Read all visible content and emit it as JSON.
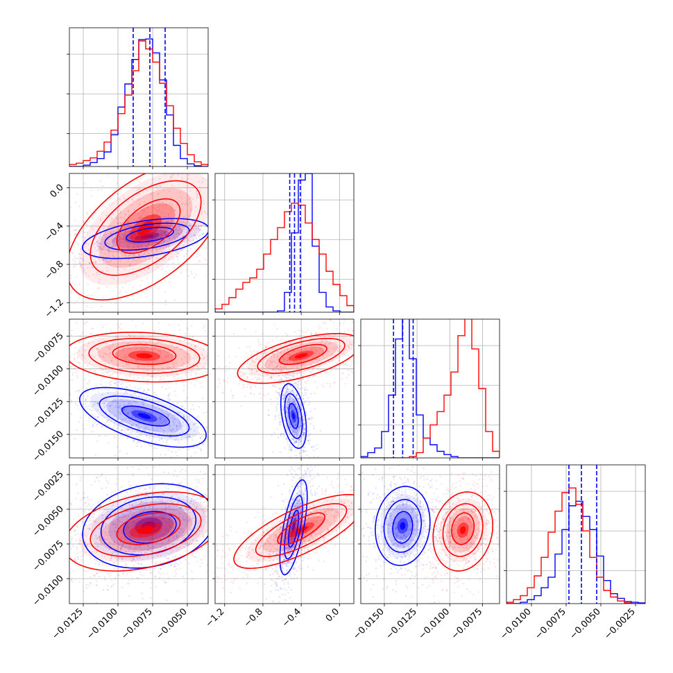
{
  "chart_data": {
    "type": "corner",
    "parameters": 4,
    "colors": {
      "series_a": "#0000ff",
      "series_b": "#ff0000"
    },
    "grid": true,
    "axis_ranges": [
      [
        -0.0135,
        -0.0035
      ],
      [
        -1.3,
        0.15
      ],
      [
        -0.0168,
        -0.0062
      ],
      [
        -0.0118,
        -0.0018
      ]
    ],
    "tick_labels": [
      [
        "−0.0125",
        "−0.0100",
        "−0.0075",
        "−0.0050"
      ],
      [
        "−1.2",
        "−0.8",
        "−0.4",
        "0.0"
      ],
      [
        "−0.0150",
        "−0.0125",
        "−0.0100",
        "−0.0075"
      ],
      [
        "−0.0100",
        "−0.0075",
        "−0.0050",
        "−0.0025"
      ]
    ],
    "tick_values": [
      [
        -0.0125,
        -0.01,
        -0.0075,
        -0.005
      ],
      [
        -1.2,
        -0.8,
        -0.4,
        0.0
      ],
      [
        -0.015,
        -0.0125,
        -0.01,
        -0.0075
      ],
      [
        -0.01,
        -0.0075,
        -0.005,
        -0.0025
      ]
    ],
    "left_tick_labels": [
      null,
      [
        "−1.2",
        "−0.8",
        "−0.4",
        "0.0"
      ],
      [
        "−0.0150",
        "−0.0125",
        "−0.0100",
        "−0.0075"
      ],
      [
        "−0.0100",
        "−0.0075",
        "−0.0050",
        "−0.0025"
      ]
    ],
    "quantile_lines": [
      [
        -0.0089,
        -0.0077,
        -0.0066
      ],
      [
        -0.52,
        -0.47,
        -0.41
      ],
      [
        -0.0143,
        -0.0136,
        -0.0128
      ],
      [
        -0.0073,
        -0.0064,
        -0.0053
      ]
    ],
    "hist_bin_edges": [
      [
        -0.0135,
        -0.013,
        -0.0125,
        -0.012,
        -0.0115,
        -0.011,
        -0.0105,
        -0.01,
        -0.0095,
        -0.009,
        -0.0085,
        -0.008,
        -0.0075,
        -0.007,
        -0.0065,
        -0.006,
        -0.0055,
        -0.005,
        -0.0045,
        -0.004,
        -0.0035
      ],
      [
        -1.3,
        -1.2275,
        -1.155,
        -1.0825,
        -1.01,
        -0.9375,
        -0.865,
        -0.7925,
        -0.72,
        -0.6475,
        -0.575,
        -0.5025,
        -0.43,
        -0.3575,
        -0.285,
        -0.2125,
        -0.14,
        -0.0675,
        0.005,
        0.0775,
        0.15
      ],
      [
        -0.0168,
        -0.01627,
        -0.01574,
        -0.01521,
        -0.01468,
        -0.01415,
        -0.01362,
        -0.01309,
        -0.01256,
        -0.01203,
        -0.0115,
        -0.01097,
        -0.01044,
        -0.00991,
        -0.00938,
        -0.00885,
        -0.00832,
        -0.00779,
        -0.00726,
        -0.00673,
        -0.0062
      ],
      [
        -0.0118,
        -0.0113,
        -0.0108,
        -0.0103,
        -0.0098,
        -0.0093,
        -0.0088,
        -0.0083,
        -0.0078,
        -0.0073,
        -0.0068,
        -0.0063,
        -0.0058,
        -0.0053,
        -0.0048,
        -0.0043,
        -0.0038,
        -0.0033,
        -0.0028,
        -0.0023,
        -0.0018
      ]
    ],
    "histograms": [
      {
        "series_a": [
          0,
          0,
          2,
          6,
          12,
          22,
          48,
          90,
          125,
          162,
          192,
          193,
          172,
          131,
          78,
          32,
          12,
          4,
          1,
          0
        ],
        "series_b": [
          3,
          5,
          9,
          13,
          23,
          37,
          55,
          80,
          108,
          145,
          190,
          178,
          158,
          126,
          92,
          58,
          35,
          18,
          7,
          3
        ]
      },
      {
        "series_a": [
          0,
          0,
          0,
          0,
          0,
          0,
          0,
          0,
          0,
          2,
          30,
          120,
          200,
          210,
          100,
          30,
          8,
          2,
          0,
          0
        ],
        "series_b": [
          5,
          12,
          22,
          35,
          45,
          52,
          65,
          88,
          110,
          128,
          152,
          165,
          162,
          135,
          110,
          88,
          62,
          42,
          25,
          10
        ]
      },
      {
        "series_a": [
          2,
          8,
          15,
          40,
          95,
          180,
          225,
          150,
          65,
          30,
          20,
          10,
          5,
          2,
          0,
          0,
          0,
          0,
          0,
          0
        ],
        "series_b": [
          0,
          0,
          0,
          0,
          0,
          0,
          0,
          2,
          8,
          30,
          50,
          70,
          95,
          130,
          185,
          218,
          165,
          105,
          40,
          10
        ]
      },
      {
        "series_a": [
          0,
          0,
          2,
          6,
          12,
          24,
          40,
          75,
          112,
          148,
          155,
          132,
          112,
          72,
          35,
          15,
          8,
          3,
          2,
          1
        ],
        "series_b": [
          2,
          6,
          12,
          24,
          42,
          70,
          108,
          140,
          168,
          175,
          150,
          110,
          70,
          40,
          20,
          10,
          4,
          1,
          0,
          0
        ]
      }
    ],
    "hist_ylim": [
      0,
      210
    ],
    "contours_2d": [
      {
        "row": 1,
        "col": 0,
        "series_a": [
          {
            "cx": -0.008,
            "cy": -0.53,
            "sx": 0.0024,
            "sy": 0.11,
            "rho": 0.45
          },
          {
            "cx": -0.0079,
            "cy": -0.51,
            "sx": 0.0016,
            "sy": 0.074,
            "rho": 0.45
          },
          {
            "cx": -0.0077,
            "cy": -0.49,
            "sx": 0.0009,
            "sy": 0.04,
            "rho": 0.45
          }
        ],
        "series_b": [
          {
            "cx": -0.008,
            "cy": -0.45,
            "sx": 0.003,
            "sy": 0.38,
            "rho": 0.55
          },
          {
            "cx": -0.008,
            "cy": -0.42,
            "sx": 0.0021,
            "sy": 0.26,
            "rho": 0.55
          },
          {
            "cx": -0.0078,
            "cy": -0.4,
            "sx": 0.0012,
            "sy": 0.15,
            "rho": 0.55
          }
        ]
      },
      {
        "row": 2,
        "col": 0,
        "series_a": [
          {
            "cx": -0.0082,
            "cy": -0.0137,
            "sx": 0.0024,
            "sy": 0.0012,
            "rho": -0.6
          },
          {
            "cx": -0.0081,
            "cy": -0.0136,
            "sx": 0.0017,
            "sy": 0.0008,
            "rho": -0.6
          },
          {
            "cx": -0.008,
            "cy": -0.0136,
            "sx": 0.0009,
            "sy": 0.0004,
            "rho": -0.6
          }
        ],
        "series_b": [
          {
            "cx": -0.0081,
            "cy": -0.0091,
            "sx": 0.003,
            "sy": 0.001,
            "rho": -0.15
          },
          {
            "cx": -0.0081,
            "cy": -0.009,
            "sx": 0.0021,
            "sy": 0.0007,
            "rho": -0.15
          },
          {
            "cx": -0.0081,
            "cy": -0.0089,
            "sx": 0.0012,
            "sy": 0.0004,
            "rho": -0.15
          }
        ]
      },
      {
        "row": 2,
        "col": 1,
        "series_a": [
          {
            "cx": -0.48,
            "cy": -0.0136,
            "sx": 0.07,
            "sy": 0.0013,
            "rho": -0.4
          },
          {
            "cx": -0.48,
            "cy": -0.0136,
            "sx": 0.048,
            "sy": 0.0009,
            "rho": -0.4
          },
          {
            "cx": -0.48,
            "cy": -0.0136,
            "sx": 0.026,
            "sy": 0.0005,
            "rho": -0.4
          }
        ],
        "series_b": [
          {
            "cx": -0.42,
            "cy": -0.0092,
            "sx": 0.34,
            "sy": 0.001,
            "rho": 0.6
          },
          {
            "cx": -0.4,
            "cy": -0.009,
            "sx": 0.24,
            "sy": 0.0007,
            "rho": 0.6
          },
          {
            "cx": -0.38,
            "cy": -0.0089,
            "sx": 0.13,
            "sy": 0.0004,
            "rho": 0.6
          }
        ]
      },
      {
        "row": 3,
        "col": 0,
        "series_a": [
          {
            "cx": -0.0078,
            "cy": -0.0062,
            "sx": 0.0025,
            "sy": 0.0016,
            "rho": 0.2
          },
          {
            "cx": -0.0078,
            "cy": -0.0062,
            "sx": 0.0018,
            "sy": 0.0011,
            "rho": 0.2
          },
          {
            "cx": -0.0077,
            "cy": -0.0063,
            "sx": 0.001,
            "sy": 0.0006,
            "rho": 0.2
          }
        ],
        "series_b": [
          {
            "cx": -0.0082,
            "cy": -0.0066,
            "sx": 0.003,
            "sy": 0.0015,
            "rho": 0.35
          },
          {
            "cx": -0.008,
            "cy": -0.0065,
            "sx": 0.0021,
            "sy": 0.001,
            "rho": 0.35
          },
          {
            "cx": -0.0078,
            "cy": -0.0064,
            "sx": 0.0012,
            "sy": 0.0006,
            "rho": 0.35
          }
        ]
      },
      {
        "row": 3,
        "col": 1,
        "series_a": [
          {
            "cx": -0.48,
            "cy": -0.0063,
            "sx": 0.075,
            "sy": 0.0018,
            "rho": 0.65
          },
          {
            "cx": -0.48,
            "cy": -0.0063,
            "sx": 0.05,
            "sy": 0.0012,
            "rho": 0.65
          },
          {
            "cx": -0.48,
            "cy": -0.0064,
            "sx": 0.028,
            "sy": 0.0007,
            "rho": 0.65
          }
        ],
        "series_b": [
          {
            "cx": -0.42,
            "cy": -0.0066,
            "sx": 0.36,
            "sy": 0.0014,
            "rho": 0.75
          },
          {
            "cx": -0.4,
            "cy": -0.0065,
            "sx": 0.25,
            "sy": 0.001,
            "rho": 0.75
          },
          {
            "cx": -0.4,
            "cy": -0.0064,
            "sx": 0.13,
            "sy": 0.0006,
            "rho": 0.75
          }
        ]
      },
      {
        "row": 3,
        "col": 2,
        "series_a": [
          {
            "cx": -0.0136,
            "cy": -0.0062,
            "sx": 0.0011,
            "sy": 0.0015,
            "rho": 0.1
          },
          {
            "cx": -0.0136,
            "cy": -0.0062,
            "sx": 0.00075,
            "sy": 0.001,
            "rho": 0.1
          },
          {
            "cx": -0.0136,
            "cy": -0.0063,
            "sx": 0.0004,
            "sy": 0.0006,
            "rho": 0.1
          }
        ],
        "series_b": [
          {
            "cx": -0.009,
            "cy": -0.0066,
            "sx": 0.0012,
            "sy": 0.0015,
            "rho": 0.15
          },
          {
            "cx": -0.009,
            "cy": -0.0065,
            "sx": 0.0008,
            "sy": 0.001,
            "rho": 0.15
          },
          {
            "cx": -0.009,
            "cy": -0.0064,
            "sx": 0.00045,
            "sy": 0.0006,
            "rho": 0.15
          }
        ]
      }
    ]
  }
}
